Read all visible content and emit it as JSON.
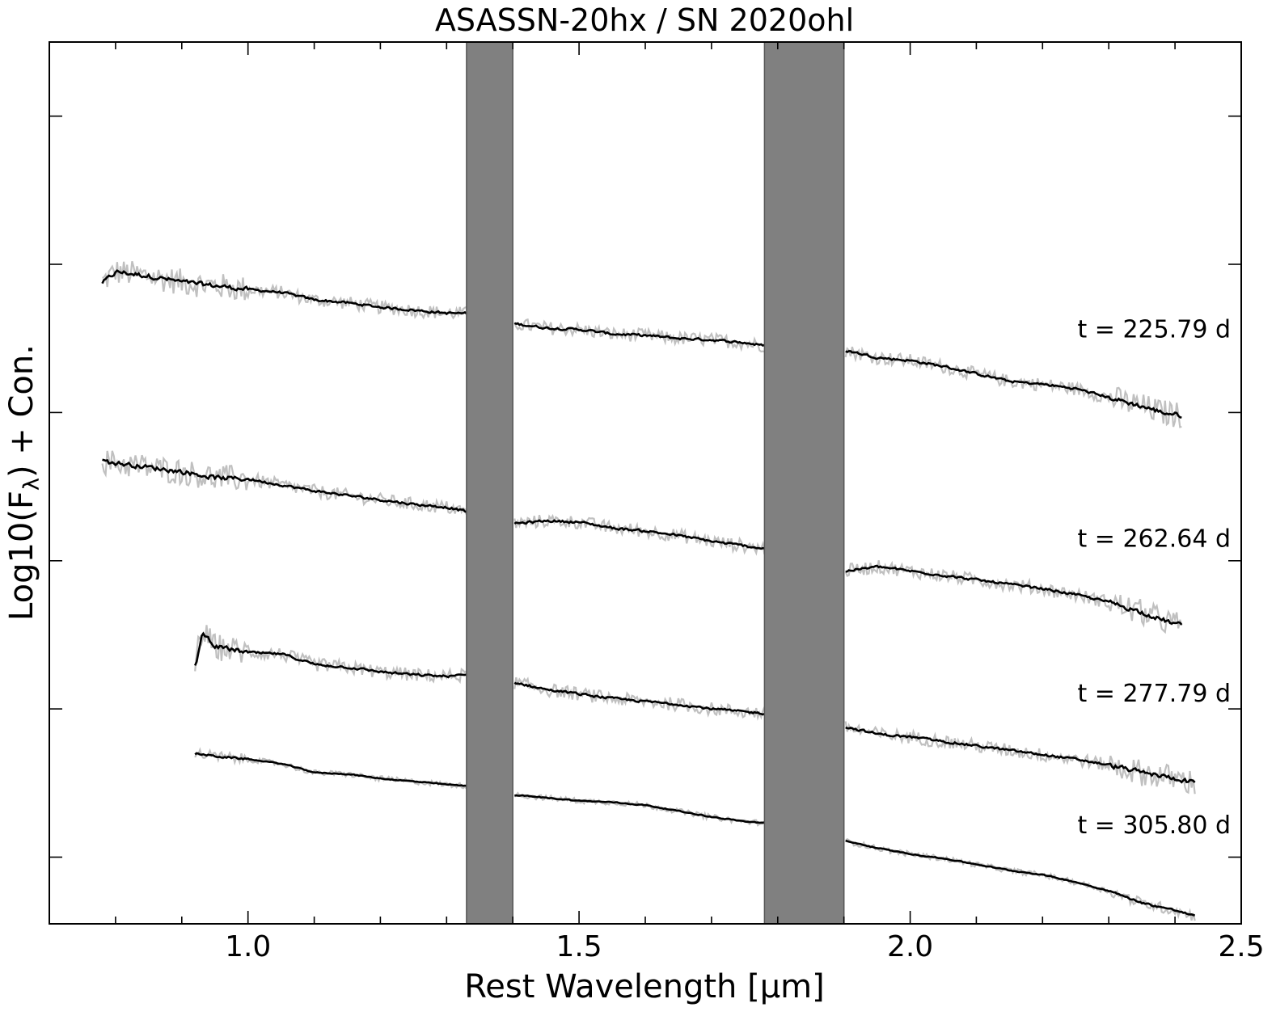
{
  "chart_data": {
    "type": "line",
    "title": "ASASSN-20hx / SN 2020ohl",
    "xlabel": "Rest Wavelength [μm]",
    "ylabel": "Log10(F",
    "ylabel_sub": "λ",
    "ylabel_tail": ") + Con.",
    "xlim": [
      0.7,
      2.5
    ],
    "ylim": [
      -0.45,
      5.5
    ],
    "xticks": [
      1.0,
      1.5,
      2.0,
      2.5
    ],
    "xtick_labels": [
      "1.0",
      "1.5",
      "2.0",
      "2.5"
    ],
    "yticks": [
      0,
      1,
      2,
      3,
      4,
      5
    ],
    "ytick_labels_shown": false,
    "masked_regions_um": [
      [
        1.33,
        1.4
      ],
      [
        1.78,
        1.9
      ]
    ],
    "masked_color": "#808080",
    "raw_color": "#c0c0c0",
    "smooth_color": "#000000",
    "series": [
      {
        "name": "t = 225.79 d",
        "x_range_um": [
          0.78,
          2.41
        ],
        "points": [
          [
            0.78,
            3.88
          ],
          [
            0.8,
            3.95
          ],
          [
            0.85,
            3.92
          ],
          [
            0.9,
            3.88
          ],
          [
            1.0,
            3.83
          ],
          [
            1.05,
            3.81
          ],
          [
            1.1,
            3.76
          ],
          [
            1.15,
            3.74
          ],
          [
            1.2,
            3.71
          ],
          [
            1.25,
            3.69
          ],
          [
            1.3,
            3.67
          ],
          [
            1.33,
            3.67
          ],
          [
            1.4,
            3.6
          ],
          [
            1.45,
            3.57
          ],
          [
            1.5,
            3.56
          ],
          [
            1.55,
            3.53
          ],
          [
            1.6,
            3.52
          ],
          [
            1.65,
            3.5
          ],
          [
            1.7,
            3.49
          ],
          [
            1.75,
            3.47
          ],
          [
            1.78,
            3.45
          ],
          [
            1.9,
            3.42
          ],
          [
            1.95,
            3.37
          ],
          [
            2.0,
            3.35
          ],
          [
            2.05,
            3.31
          ],
          [
            2.1,
            3.26
          ],
          [
            2.15,
            3.21
          ],
          [
            2.2,
            3.19
          ],
          [
            2.25,
            3.16
          ],
          [
            2.3,
            3.1
          ],
          [
            2.35,
            3.04
          ],
          [
            2.38,
            3.0
          ],
          [
            2.41,
            2.98
          ]
        ]
      },
      {
        "name": "t = 262.64 d",
        "x_range_um": [
          0.78,
          2.41
        ],
        "points": [
          [
            0.78,
            2.67
          ],
          [
            0.85,
            2.63
          ],
          [
            0.9,
            2.6
          ],
          [
            0.95,
            2.56
          ],
          [
            1.0,
            2.55
          ],
          [
            1.05,
            2.51
          ],
          [
            1.1,
            2.47
          ],
          [
            1.15,
            2.44
          ],
          [
            1.2,
            2.41
          ],
          [
            1.25,
            2.38
          ],
          [
            1.3,
            2.36
          ],
          [
            1.33,
            2.33
          ],
          [
            1.4,
            2.25
          ],
          [
            1.45,
            2.27
          ],
          [
            1.5,
            2.26
          ],
          [
            1.55,
            2.22
          ],
          [
            1.6,
            2.2
          ],
          [
            1.65,
            2.17
          ],
          [
            1.7,
            2.13
          ],
          [
            1.75,
            2.1
          ],
          [
            1.78,
            2.08
          ],
          [
            1.9,
            1.93
          ],
          [
            1.95,
            1.96
          ],
          [
            2.0,
            1.93
          ],
          [
            2.05,
            1.9
          ],
          [
            2.1,
            1.87
          ],
          [
            2.15,
            1.84
          ],
          [
            2.2,
            1.81
          ],
          [
            2.25,
            1.77
          ],
          [
            2.3,
            1.72
          ],
          [
            2.35,
            1.65
          ],
          [
            2.38,
            1.6
          ],
          [
            2.41,
            1.56
          ]
        ]
      },
      {
        "name": "t = 277.79 d",
        "x_range_um": [
          0.92,
          2.43
        ],
        "points": [
          [
            0.92,
            1.3
          ],
          [
            0.93,
            1.52
          ],
          [
            0.95,
            1.42
          ],
          [
            1.0,
            1.38
          ],
          [
            1.05,
            1.37
          ],
          [
            1.1,
            1.3
          ],
          [
            1.15,
            1.28
          ],
          [
            1.2,
            1.25
          ],
          [
            1.25,
            1.23
          ],
          [
            1.3,
            1.22
          ],
          [
            1.33,
            1.23
          ],
          [
            1.4,
            1.18
          ],
          [
            1.45,
            1.13
          ],
          [
            1.5,
            1.1
          ],
          [
            1.55,
            1.07
          ],
          [
            1.6,
            1.05
          ],
          [
            1.65,
            1.03
          ],
          [
            1.7,
            1.0
          ],
          [
            1.75,
            0.98
          ],
          [
            1.78,
            0.97
          ],
          [
            1.9,
            0.88
          ],
          [
            1.95,
            0.83
          ],
          [
            2.0,
            0.81
          ],
          [
            2.05,
            0.78
          ],
          [
            2.1,
            0.75
          ],
          [
            2.15,
            0.72
          ],
          [
            2.2,
            0.69
          ],
          [
            2.25,
            0.66
          ],
          [
            2.3,
            0.62
          ],
          [
            2.35,
            0.57
          ],
          [
            2.4,
            0.53
          ],
          [
            2.43,
            0.5
          ]
        ]
      },
      {
        "name": "t = 305.80 d",
        "x_range_um": [
          0.92,
          2.43
        ],
        "points": [
          [
            0.92,
            0.7
          ],
          [
            0.95,
            0.68
          ],
          [
            1.0,
            0.66
          ],
          [
            1.05,
            0.63
          ],
          [
            1.1,
            0.57
          ],
          [
            1.15,
            0.56
          ],
          [
            1.2,
            0.53
          ],
          [
            1.25,
            0.51
          ],
          [
            1.3,
            0.49
          ],
          [
            1.33,
            0.48
          ],
          [
            1.4,
            0.42
          ],
          [
            1.45,
            0.4
          ],
          [
            1.5,
            0.38
          ],
          [
            1.55,
            0.37
          ],
          [
            1.6,
            0.35
          ],
          [
            1.65,
            0.31
          ],
          [
            1.7,
            0.27
          ],
          [
            1.75,
            0.24
          ],
          [
            1.78,
            0.23
          ],
          [
            1.9,
            0.11
          ],
          [
            1.95,
            0.06
          ],
          [
            2.0,
            0.02
          ],
          [
            2.05,
            -0.01
          ],
          [
            2.1,
            -0.05
          ],
          [
            2.15,
            -0.09
          ],
          [
            2.2,
            -0.12
          ],
          [
            2.25,
            -0.17
          ],
          [
            2.3,
            -0.23
          ],
          [
            2.35,
            -0.31
          ],
          [
            2.4,
            -0.36
          ],
          [
            2.43,
            -0.4
          ]
        ]
      }
    ]
  }
}
